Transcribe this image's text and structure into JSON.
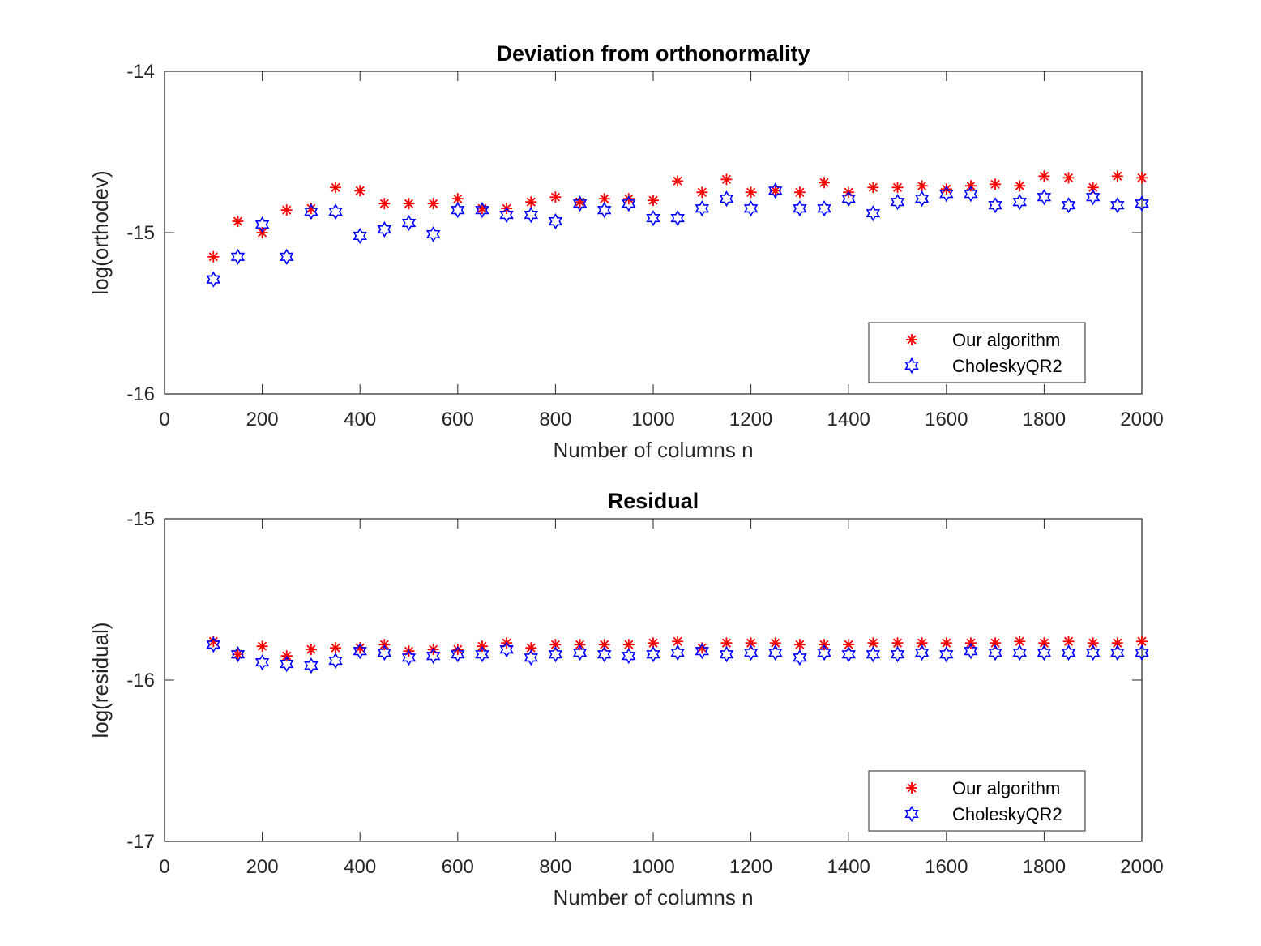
{
  "chart_data": [
    {
      "type": "scatter",
      "title": "Deviation from orthonormality",
      "xlabel": "Number of columns n",
      "ylabel": "log(orthodev)",
      "xlim": [
        0,
        2000
      ],
      "ylim": [
        -16,
        -14
      ],
      "xticks": [
        0,
        200,
        400,
        600,
        800,
        1000,
        1200,
        1400,
        1600,
        1800,
        2000
      ],
      "yticks": [
        -16,
        -15,
        -14
      ],
      "grid": false,
      "legend_position": "bottom-right",
      "x": [
        100,
        150,
        200,
        250,
        300,
        350,
        400,
        450,
        500,
        550,
        600,
        650,
        700,
        750,
        800,
        850,
        900,
        950,
        1000,
        1050,
        1100,
        1150,
        1200,
        1250,
        1300,
        1350,
        1400,
        1450,
        1500,
        1550,
        1600,
        1650,
        1700,
        1750,
        1800,
        1850,
        1900,
        1950,
        2000
      ],
      "series": [
        {
          "name": "Our algorithm",
          "marker": "asterisk",
          "color": "#ff0000",
          "values": [
            -15.15,
            -14.93,
            -15.0,
            -14.86,
            -14.85,
            -14.72,
            -14.74,
            -14.82,
            -14.82,
            -14.82,
            -14.79,
            -14.85,
            -14.85,
            -14.81,
            -14.78,
            -14.81,
            -14.79,
            -14.79,
            -14.8,
            -14.68,
            -14.75,
            -14.67,
            -14.75,
            -14.74,
            -14.75,
            -14.69,
            -14.75,
            -14.72,
            -14.72,
            -14.71,
            -14.73,
            -14.71,
            -14.7,
            -14.71,
            -14.65,
            -14.66,
            -14.72,
            -14.65,
            -14.66
          ]
        },
        {
          "name": "CholeskyQR2",
          "marker": "hexagram",
          "color": "#0000ff",
          "values": [
            -15.29,
            -15.15,
            -14.95,
            -15.15,
            -14.87,
            -14.87,
            -15.02,
            -14.98,
            -14.94,
            -15.01,
            -14.86,
            -14.86,
            -14.89,
            -14.89,
            -14.93,
            -14.82,
            -14.86,
            -14.82,
            -14.91,
            -14.91,
            -14.85,
            -14.79,
            -14.85,
            -14.74,
            -14.85,
            -14.85,
            -14.79,
            -14.88,
            -14.81,
            -14.79,
            -14.76,
            -14.76,
            -14.83,
            -14.81,
            -14.78,
            -14.83,
            -14.78,
            -14.83,
            -14.82
          ]
        }
      ]
    },
    {
      "type": "scatter",
      "title": "Residual",
      "xlabel": "Number of columns n",
      "ylabel": "log(residual)",
      "xlim": [
        0,
        2000
      ],
      "ylim": [
        -17,
        -15
      ],
      "xticks": [
        0,
        200,
        400,
        600,
        800,
        1000,
        1200,
        1400,
        1600,
        1800,
        2000
      ],
      "yticks": [
        -17,
        -16,
        -15
      ],
      "grid": false,
      "legend_position": "bottom-right",
      "x": [
        100,
        150,
        200,
        250,
        300,
        350,
        400,
        450,
        500,
        550,
        600,
        650,
        700,
        750,
        800,
        850,
        900,
        950,
        1000,
        1050,
        1100,
        1150,
        1200,
        1250,
        1300,
        1350,
        1400,
        1450,
        1500,
        1550,
        1600,
        1650,
        1700,
        1750,
        1800,
        1850,
        1900,
        1950,
        2000
      ],
      "series": [
        {
          "name": "Our algorithm",
          "marker": "asterisk",
          "color": "#ff0000",
          "values": [
            -15.76,
            -15.84,
            -15.79,
            -15.85,
            -15.81,
            -15.8,
            -15.8,
            -15.78,
            -15.82,
            -15.81,
            -15.81,
            -15.79,
            -15.77,
            -15.8,
            -15.78,
            -15.78,
            -15.78,
            -15.78,
            -15.77,
            -15.76,
            -15.8,
            -15.77,
            -15.77,
            -15.77,
            -15.78,
            -15.78,
            -15.78,
            -15.77,
            -15.77,
            -15.77,
            -15.77,
            -15.77,
            -15.77,
            -15.76,
            -15.77,
            -15.76,
            -15.77,
            -15.77,
            -15.76
          ]
        },
        {
          "name": "CholeskyQR2",
          "marker": "hexagram",
          "color": "#0000ff",
          "values": [
            -15.78,
            -15.84,
            -15.89,
            -15.9,
            -15.91,
            -15.88,
            -15.82,
            -15.83,
            -15.86,
            -15.85,
            -15.84,
            -15.84,
            -15.81,
            -15.86,
            -15.84,
            -15.83,
            -15.84,
            -15.85,
            -15.84,
            -15.83,
            -15.82,
            -15.84,
            -15.83,
            -15.83,
            -15.86,
            -15.83,
            -15.84,
            -15.84,
            -15.84,
            -15.83,
            -15.84,
            -15.82,
            -15.83,
            -15.83,
            -15.83,
            -15.83,
            -15.83,
            -15.83,
            -15.83
          ]
        }
      ]
    }
  ]
}
